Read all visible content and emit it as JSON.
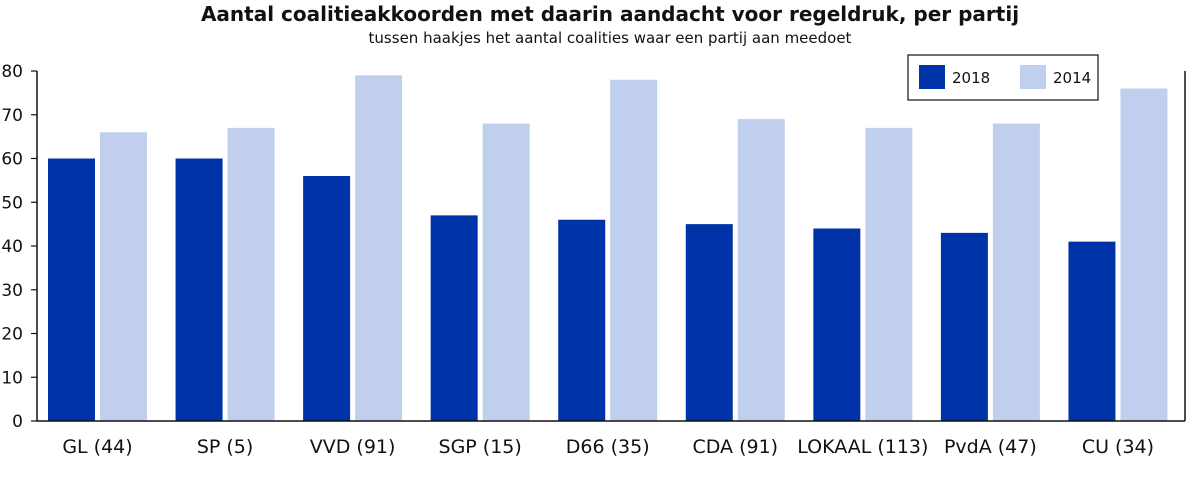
{
  "chart_data": {
    "type": "bar",
    "title": "Aantal coalitieakkoorden met daarin aandacht voor regeldruk, per partij",
    "subtitle": "tussen haakjes het aantal coalities waar een partij aan meedoet",
    "categories": [
      "GL (44)",
      "SP (5)",
      "VVD (91)",
      "SGP (15)",
      "D66 (35)",
      "CDA (91)",
      "LOKAAL (113)",
      "PvdA (47)",
      "CU (34)"
    ],
    "series": [
      {
        "name": "2018",
        "color": "#0033a8",
        "values": [
          60,
          60,
          56,
          47,
          46,
          45,
          44,
          43,
          41
        ]
      },
      {
        "name": "2014",
        "color": "#c0cfee",
        "values": [
          66,
          67,
          79,
          68,
          78,
          69,
          67,
          68,
          76
        ]
      }
    ],
    "ylim": [
      0,
      80
    ],
    "yticks": [
      "0",
      "10",
      "20",
      "30",
      "40",
      "50",
      "60",
      "70",
      "80"
    ],
    "xlabel": "",
    "ylabel": "",
    "grid": false,
    "legend": "top-right"
  }
}
